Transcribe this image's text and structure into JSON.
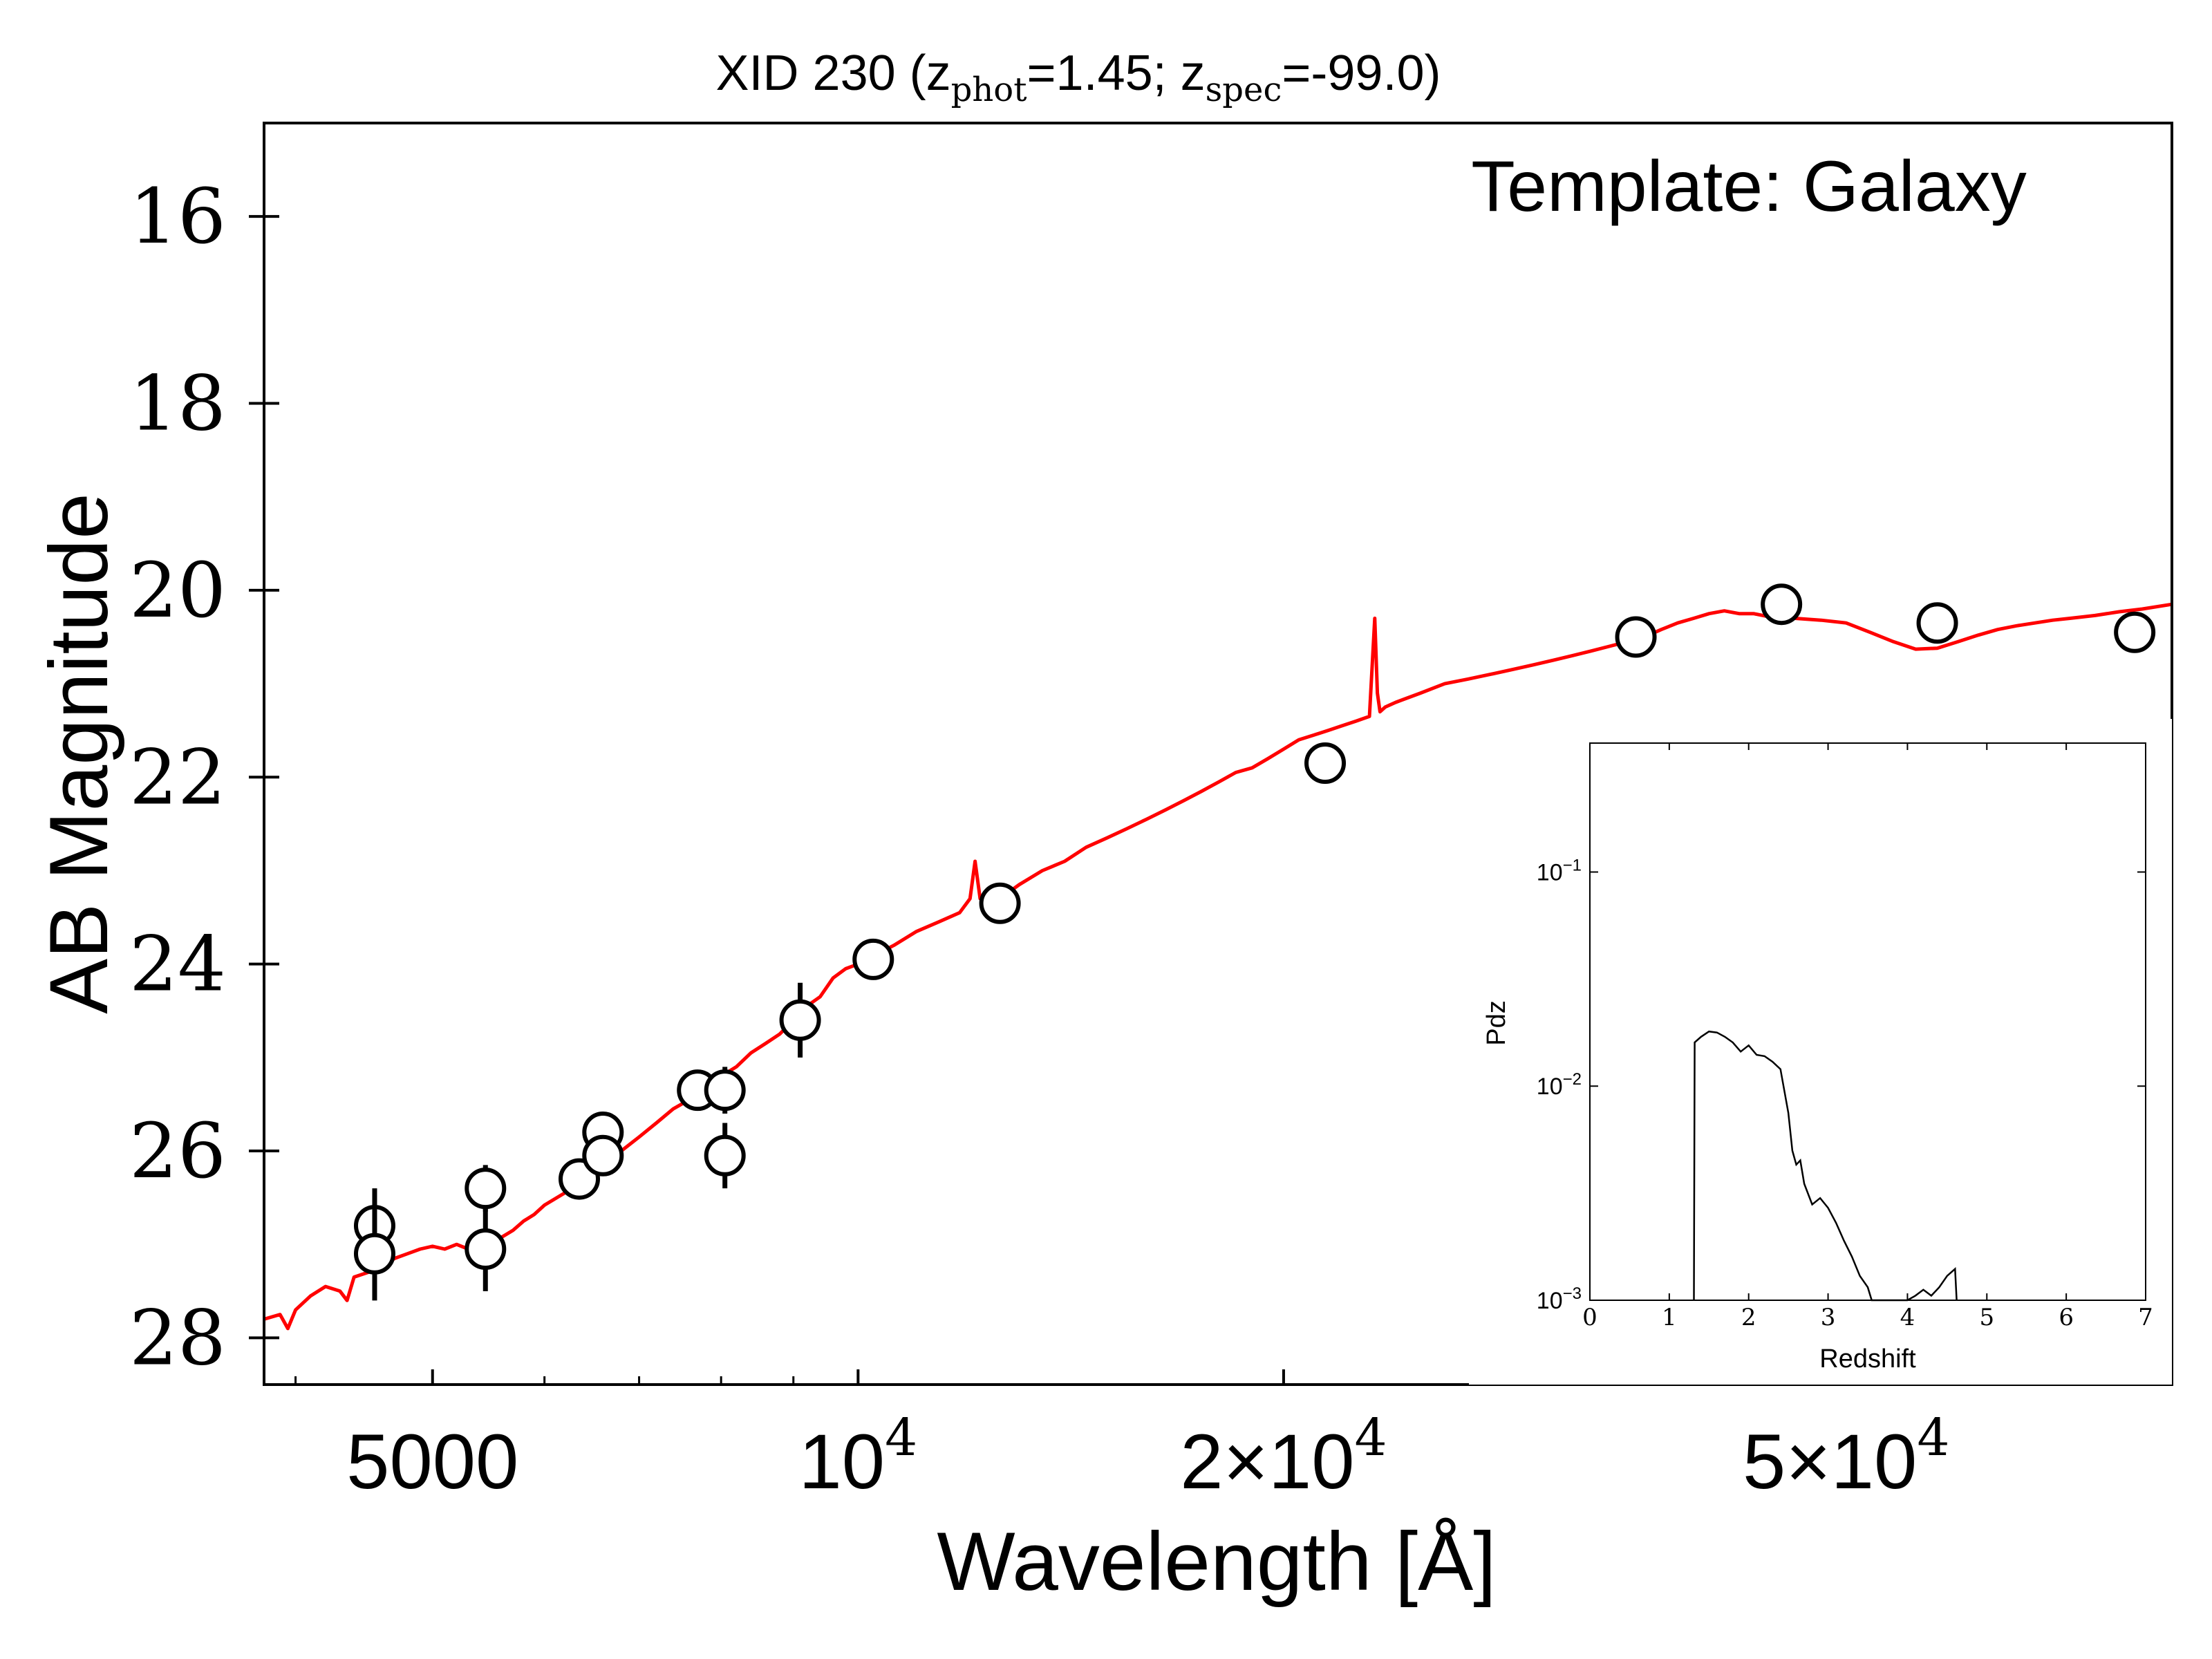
{
  "chart_data": [
    {
      "type": "scatter",
      "title": "XID 230 (z",
      "title_sub1": "phot",
      "title_mid": "=1.45; z",
      "title_sub2": "spec",
      "title_end": "=-99.0)",
      "annotation": "Template: Galaxy",
      "xlabel": "Wavelength [Å]",
      "ylabel": "AB Magnitude",
      "xscale": "log",
      "xlim": [
        3800,
        85000
      ],
      "ylim": [
        28.5,
        15.0
      ],
      "y_inverted": true,
      "x_ticks": [
        {
          "value": 5000,
          "label": "5000"
        },
        {
          "value": 10000,
          "label": "10",
          "exp": "4"
        },
        {
          "value": 20000,
          "label": "2×10",
          "exp": "4"
        },
        {
          "value": 50000,
          "label": "5×10",
          "exp": "4"
        }
      ],
      "y_ticks": [
        16,
        18,
        20,
        22,
        24,
        26,
        28
      ],
      "grid": false,
      "colors": {
        "model": "#ff0000",
        "points": "#000000"
      },
      "series": [
        {
          "kind": "line",
          "x": [
            3800,
            3900,
            3950,
            4000,
            4100,
            4200,
            4300,
            4350,
            4400,
            4500,
            4600,
            4700,
            4800,
            4900,
            5000,
            5100,
            5200,
            5300,
            5400,
            5500,
            5600,
            5700,
            5800,
            5900,
            6000,
            6200,
            6400,
            6600,
            6800,
            7000,
            7200,
            7400,
            7600,
            7800,
            8000,
            8200,
            8400,
            8600,
            8800,
            9000,
            9200,
            9400,
            9600,
            9800,
            10000,
            10300,
            10600,
            11000,
            11400,
            11800,
            12000,
            12100,
            12200,
            12400,
            12600,
            13000,
            13500,
            14000,
            14500,
            15000,
            15500,
            16000,
            16500,
            17000,
            17500,
            18000,
            18500,
            19000,
            19500,
            20000,
            20500,
            21000,
            21500,
            22000,
            22500,
            23000,
            23200,
            23300,
            23400,
            23600,
            24000,
            25000,
            26000,
            27000,
            28000,
            29000,
            30000,
            31000,
            32000,
            33000,
            34000,
            35000,
            36000,
            37000,
            38000,
            39000,
            40000,
            41000,
            42000,
            43000,
            44000,
            45000,
            46000,
            48000,
            50000,
            52000,
            54000,
            56000,
            58000,
            60000,
            62000,
            64000,
            66000,
            68000,
            70000,
            72000,
            75000,
            78000,
            81000,
            85000
          ],
          "y": [
            27.8,
            27.75,
            27.9,
            27.7,
            27.55,
            27.45,
            27.5,
            27.6,
            27.35,
            27.3,
            27.25,
            27.15,
            27.1,
            27.05,
            27.02,
            27.05,
            27.0,
            27.05,
            27.02,
            27.0,
            26.92,
            26.85,
            26.75,
            26.68,
            26.58,
            26.45,
            26.3,
            26.15,
            26.0,
            25.85,
            25.7,
            25.55,
            25.45,
            25.3,
            25.2,
            25.1,
            24.95,
            24.85,
            24.75,
            24.6,
            24.45,
            24.35,
            24.15,
            24.05,
            24.0,
            23.9,
            23.8,
            23.65,
            23.55,
            23.45,
            23.3,
            22.9,
            23.3,
            23.35,
            23.3,
            23.15,
            23.0,
            22.9,
            22.75,
            22.65,
            22.55,
            22.45,
            22.35,
            22.25,
            22.15,
            22.05,
            21.95,
            21.9,
            21.8,
            21.7,
            21.6,
            21.55,
            21.5,
            21.45,
            21.4,
            21.35,
            20.3,
            21.1,
            21.3,
            21.25,
            21.2,
            21.1,
            21.0,
            20.95,
            20.9,
            20.85,
            20.8,
            20.75,
            20.7,
            20.65,
            20.6,
            20.55,
            20.5,
            20.42,
            20.35,
            20.3,
            20.25,
            20.22,
            20.25,
            20.25,
            20.28,
            20.3,
            20.3,
            20.32,
            20.35,
            20.45,
            20.55,
            20.63,
            20.62,
            20.55,
            20.48,
            20.42,
            20.38,
            20.35,
            20.32,
            20.3,
            20.27,
            20.23,
            20.2,
            20.15
          ]
        },
        {
          "kind": "errorbar",
          "points": [
            {
              "x": 4550,
              "y": 26.8,
              "yerr": 0.4
            },
            {
              "x": 4550,
              "y": 27.1,
              "yerr": 0.5
            },
            {
              "x": 5450,
              "y": 26.4,
              "yerr": 0.25
            },
            {
              "x": 5450,
              "y": 27.05,
              "yerr": 0.45
            },
            {
              "x": 6350,
              "y": 26.3,
              "yerr": 0.12
            },
            {
              "x": 6600,
              "y": 25.8,
              "yerr": 0.1
            },
            {
              "x": 6600,
              "y": 26.05,
              "yerr": 0.1
            },
            {
              "x": 7700,
              "y": 25.35,
              "yerr": 0.1
            },
            {
              "x": 8050,
              "y": 25.35,
              "yerr": 0.25
            },
            {
              "x": 8050,
              "y": 26.05,
              "yerr": 0.35
            },
            {
              "x": 9100,
              "y": 24.6,
              "yerr": 0.4
            },
            {
              "x": 10250,
              "y": 23.95,
              "yerr": 0.1
            },
            {
              "x": 12600,
              "y": 23.35,
              "yerr": 0.1
            },
            {
              "x": 21400,
              "y": 21.85,
              "yerr": 0.1
            },
            {
              "x": 35500,
              "y": 20.5,
              "yerr": 0.1
            },
            {
              "x": 45000,
              "y": 20.15,
              "yerr": 0.1
            },
            {
              "x": 58000,
              "y": 20.35,
              "yerr": 0.1
            },
            {
              "x": 80000,
              "y": 20.45,
              "yerr": 0.1
            }
          ]
        }
      ]
    },
    {
      "type": "line",
      "xlabel": "Redshift",
      "ylabel": "Pdz",
      "yscale": "log",
      "xlim": [
        0,
        7
      ],
      "ylim": [
        0.001,
        0.4
      ],
      "x_ticks": [
        "0",
        "1",
        "2",
        "3",
        "4",
        "5",
        "6",
        "7"
      ],
      "y_ticks": [
        {
          "value": 0.1,
          "base": "10",
          "exp": "−1"
        },
        {
          "value": 0.01,
          "base": "10",
          "exp": "−2"
        },
        {
          "value": 0.001,
          "base": "10",
          "exp": "−3"
        }
      ],
      "series": [
        {
          "x": [
            1.31,
            1.32,
            1.4,
            1.5,
            1.6,
            1.7,
            1.8,
            1.9,
            2.0,
            2.1,
            2.2,
            2.3,
            2.4,
            2.5,
            2.55,
            2.6,
            2.65,
            2.7,
            2.8,
            2.9,
            3.0,
            3.1,
            3.2,
            3.3,
            3.4,
            3.5,
            3.55,
            3.6,
            3.7,
            3.8,
            3.9,
            4.0,
            4.1,
            4.2,
            4.3,
            4.4,
            4.5,
            4.6,
            4.62
          ],
          "y": [
            0.001,
            0.016,
            0.017,
            0.018,
            0.0178,
            0.017,
            0.016,
            0.0145,
            0.0155,
            0.014,
            0.0138,
            0.013,
            0.012,
            0.0075,
            0.005,
            0.0043,
            0.0045,
            0.0035,
            0.0028,
            0.003,
            0.0027,
            0.0023,
            0.0019,
            0.0016,
            0.0013,
            0.00115,
            0.001,
            0.00098,
            0.00098,
            0.00098,
            0.00099,
            0.001,
            0.00105,
            0.00112,
            0.00105,
            0.00115,
            0.0013,
            0.0014,
            0.001
          ]
        }
      ]
    }
  ]
}
